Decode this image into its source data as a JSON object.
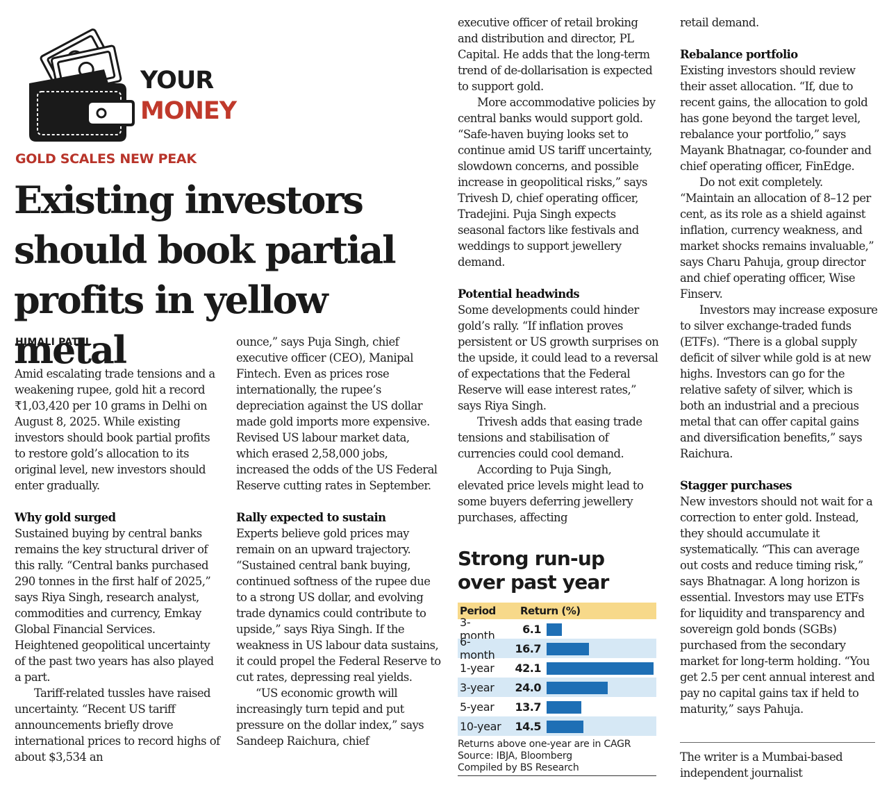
{
  "masthead": {
    "brand_line1": "YOUR",
    "brand_line2": "MONEY",
    "logo_icon": "wallet-with-cash-icon"
  },
  "article": {
    "kicker": "GOLD SCALES NEW PEAK",
    "headline": "Existing investors should book partial profits in yellow metal",
    "byline": "HIMALI PATEL",
    "col1": {
      "p1": "Amid escalating trade tensions and a weakening rupee, gold hit a record ₹1,03,420 per 10 grams in Delhi on August 8, 2025. While existing investors should book partial profits to restore gold’s allocation to its original level, new investors should enter gradually.",
      "h1": "Why gold surged",
      "p2": "Sustained buying by central banks remains the key structural driver of this rally. “Central banks purchased 290 tonnes in the first half of 2025,” says Riya Singh, research analyst, commodities and currency, Emkay Global Financial Services. Heightened geopolitical uncertainty of the past two years has also played a part.",
      "p3": "Tariff-related tussles have raised uncertainty. “Recent US tariff announcements briefly drove international prices to record highs of about $3,534 an"
    },
    "col2": {
      "p1": "ounce,” says Puja Singh, chief executive officer (CEO), Manipal Fintech. Even as prices rose internationally, the rupee’s depreciation against the US dollar made gold imports more expensive. Revised US labour market data, which erased 2,58,000 jobs, increased the odds of the US Federal Reserve cutting rates in September.",
      "h1": "Rally expected to sustain",
      "p2": "Experts believe gold prices may remain on an upward trajectory. “Sustained central bank buying, continued softness of the rupee due to a strong US dollar, and evolving trade dynamics could contribute to upside,” says Riya Singh. If the weakness in US labour data sustains, it could propel the Federal Reserve to cut rates, depressing real yields.",
      "p3": "“US economic growth will increasingly turn tepid and put pressure on the dollar index,” says Sandeep Raichura, chief"
    },
    "col3": {
      "p1": "executive officer of retail broking and distribution and director, PL Capital. He adds that the long-term trend of de-dollarisation is expected to support gold.",
      "p2": "More accommodative policies by central banks would support gold. “Safe-haven buying looks set to continue amid US tariff uncertainty, slowdown concerns, and possible increase in geopolitical risks,” says Trivesh D, chief operating officer, Tradejini. Puja Singh expects seasonal factors like festivals and weddings to support jewellery demand.",
      "h1": "Potential headwinds",
      "p3": "Some developments could hinder gold’s rally. “If inflation proves persistent or US growth surprises on the upside, it could lead to a reversal of expectations that the Federal Reserve will ease interest rates,” says Riya Singh.",
      "p4": "Trivesh adds that easing trade tensions and stabilisation of currencies could cool demand.",
      "p5": "According to Puja Singh, elevated price levels might lead to some buyers deferring jewellery purchases, affecting"
    },
    "col4": {
      "p1": "retail demand.",
      "h1": "Rebalance portfolio",
      "p2": "Existing investors should review their asset allocation. “If, due to recent gains, the allocation to gold has gone beyond the target level, rebalance your portfolio,” says Mayank Bhatnagar, co-founder and chief operating officer, FinEdge.",
      "p3": "Do not exit completely. “Maintain an allocation of 8–12 per cent, as its role as a shield against inflation, currency weakness, and market shocks remains invaluable,” says Charu Pahuja, group director and chief operating officer, Wise Finserv.",
      "p4": "Investors may increase exposure to silver exchange-traded funds (ETFs). “There is a global supply deficit of silver while gold is at new highs. Investors can go for the relative safety of silver, which is both an industrial and a precious metal that can offer capital gains and diversification benefits,” says Raichura.",
      "h2": "Stagger purchases",
      "p5": "New investors should not wait for a correction to enter gold. Instead, they should accumulate it systematically. “This can average out costs and reduce timing risk,” says Bhatnagar. A long horizon is essential. Investors may use ETFs for liquidity and transparency and sovereign gold bonds (SGBs) purchased from the secondary market for long-term holding. “You get 2.5 per cent annual interest and pay no capital gains tax if held to maturity,” says Pahuja.",
      "footer": "The writer is a Mumbai-based independent journalist"
    }
  },
  "chart_data": {
    "type": "bar",
    "title": "Strong run-up over past year",
    "column_headers": [
      "Period",
      "Return (%)"
    ],
    "categories": [
      "3-month",
      "6-month",
      "1-year",
      "3-year",
      "5-year",
      "10-year"
    ],
    "values": [
      6.1,
      16.7,
      42.1,
      24.0,
      13.7,
      14.5
    ],
    "value_labels": [
      "6.1",
      "16.7",
      "42.1",
      "24.0",
      "13.7",
      "14.5"
    ],
    "orientation": "horizontal",
    "bar_color": "#1e6fb5",
    "header_color": "#f7d98a",
    "stripe_color": "#d6e8f5",
    "notes": [
      "Returns above one-year are in CAGR",
      "Source: IBJA, Bloomberg",
      "Compiled by BS Research"
    ]
  },
  "colors": {
    "accent": "#c0392b",
    "kicker": "#b8342a"
  }
}
